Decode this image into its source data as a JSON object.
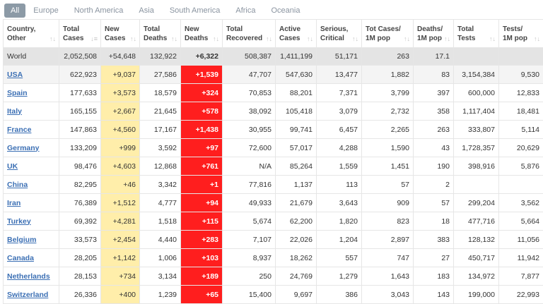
{
  "tabs": [
    "All",
    "Europe",
    "North America",
    "Asia",
    "South America",
    "Africa",
    "Oceania"
  ],
  "active_tab": "All",
  "columns": [
    {
      "l1": "Country,",
      "l2": "Other"
    },
    {
      "l1": "Total",
      "l2": "Cases"
    },
    {
      "l1": "New",
      "l2": "Cases"
    },
    {
      "l1": "Total",
      "l2": "Deaths"
    },
    {
      "l1": "New",
      "l2": "Deaths"
    },
    {
      "l1": "Total",
      "l2": "Recovered"
    },
    {
      "l1": "Active",
      "l2": "Cases"
    },
    {
      "l1": "Serious,",
      "l2": "Critical"
    },
    {
      "l1": "Tot Cases/",
      "l2": "1M pop"
    },
    {
      "l1": "Deaths/",
      "l2": "1M pop"
    },
    {
      "l1": "Total",
      "l2": "Tests"
    },
    {
      "l1": "Tests/",
      "l2": "1M pop"
    }
  ],
  "sort_icon": "sort-arrows-icon",
  "world": [
    "World",
    "2,052,508",
    "+54,648",
    "132,922",
    "+6,322",
    "508,387",
    "1,411,199",
    "51,171",
    "263",
    "17.1",
    "",
    ""
  ],
  "rows": [
    [
      "USA",
      "622,923",
      "+9,037",
      "27,586",
      "+1,539",
      "47,707",
      "547,630",
      "13,477",
      "1,882",
      "83",
      "3,154,384",
      "9,530"
    ],
    [
      "Spain",
      "177,633",
      "+3,573",
      "18,579",
      "+324",
      "70,853",
      "88,201",
      "7,371",
      "3,799",
      "397",
      "600,000",
      "12,833"
    ],
    [
      "Italy",
      "165,155",
      "+2,667",
      "21,645",
      "+578",
      "38,092",
      "105,418",
      "3,079",
      "2,732",
      "358",
      "1,117,404",
      "18,481"
    ],
    [
      "France",
      "147,863",
      "+4,560",
      "17,167",
      "+1,438",
      "30,955",
      "99,741",
      "6,457",
      "2,265",
      "263",
      "333,807",
      "5,114"
    ],
    [
      "Germany",
      "133,209",
      "+999",
      "3,592",
      "+97",
      "72,600",
      "57,017",
      "4,288",
      "1,590",
      "43",
      "1,728,357",
      "20,629"
    ],
    [
      "UK",
      "98,476",
      "+4,603",
      "12,868",
      "+761",
      "N/A",
      "85,264",
      "1,559",
      "1,451",
      "190",
      "398,916",
      "5,876"
    ],
    [
      "China",
      "82,295",
      "+46",
      "3,342",
      "+1",
      "77,816",
      "1,137",
      "113",
      "57",
      "2",
      "",
      ""
    ],
    [
      "Iran",
      "76,389",
      "+1,512",
      "4,777",
      "+94",
      "49,933",
      "21,679",
      "3,643",
      "909",
      "57",
      "299,204",
      "3,562"
    ],
    [
      "Turkey",
      "69,392",
      "+4,281",
      "1,518",
      "+115",
      "5,674",
      "62,200",
      "1,820",
      "823",
      "18",
      "477,716",
      "5,664"
    ],
    [
      "Belgium",
      "33,573",
      "+2,454",
      "4,440",
      "+283",
      "7,107",
      "22,026",
      "1,204",
      "2,897",
      "383",
      "128,132",
      "11,056"
    ],
    [
      "Canada",
      "28,205",
      "+1,142",
      "1,006",
      "+103",
      "8,937",
      "18,262",
      "557",
      "747",
      "27",
      "450,717",
      "11,942"
    ],
    [
      "Netherlands",
      "28,153",
      "+734",
      "3,134",
      "+189",
      "250",
      "24,769",
      "1,279",
      "1,643",
      "183",
      "134,972",
      "7,877"
    ],
    [
      "Switzerland",
      "26,336",
      "+400",
      "1,239",
      "+65",
      "15,400",
      "9,697",
      "386",
      "3,043",
      "143",
      "199,000",
      "22,993"
    ]
  ],
  "colors": {
    "new_cases_bg": "#ffeeaa",
    "new_deaths_bg": "#ff1e1e",
    "world_row_bg": "#e4e4e4",
    "link": "#3b6fb4",
    "active_tab_bg": "#8c9aa6"
  }
}
